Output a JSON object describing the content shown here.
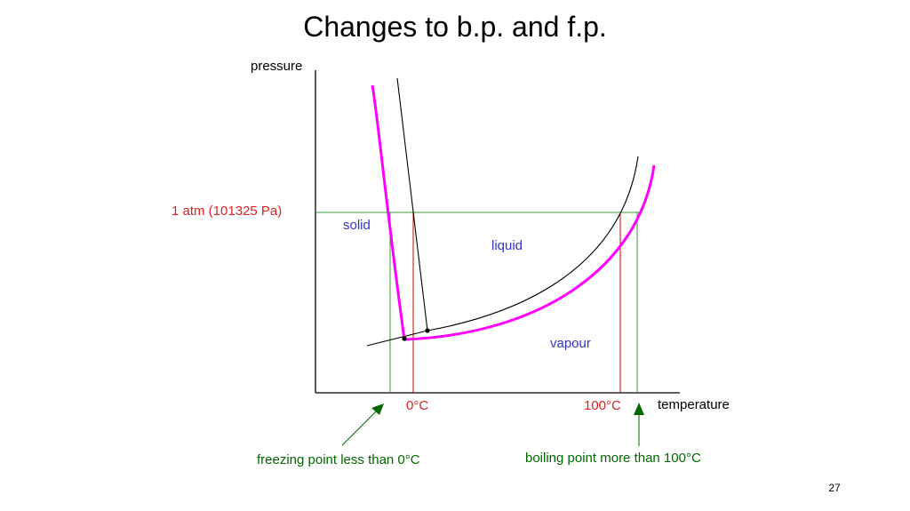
{
  "slide": {
    "title": "Changes to b.p. and f.p.",
    "number": "27"
  },
  "diagram": {
    "axis_y_label": "pressure",
    "axis_x_label": "temperature",
    "pressure_marker_label": "1 atm (101325 Pa)",
    "region_solid": "solid",
    "region_liquid": "liquid",
    "region_vapour": "vapour",
    "tick_freezing": "0°C",
    "tick_boiling": "100°C",
    "annotation_freezing": "freezing point less than 0°C",
    "annotation_boiling": "boiling point more than 100°C",
    "colors": {
      "original_curves": "#000000",
      "solution_curves": "#ff00ff",
      "pure_water_markers": "#cc0000",
      "solution_markers": "#339933",
      "region_labels": "#3333cc",
      "pressure_label": "#dd2222",
      "annotation_arrows": "#006600"
    }
  }
}
